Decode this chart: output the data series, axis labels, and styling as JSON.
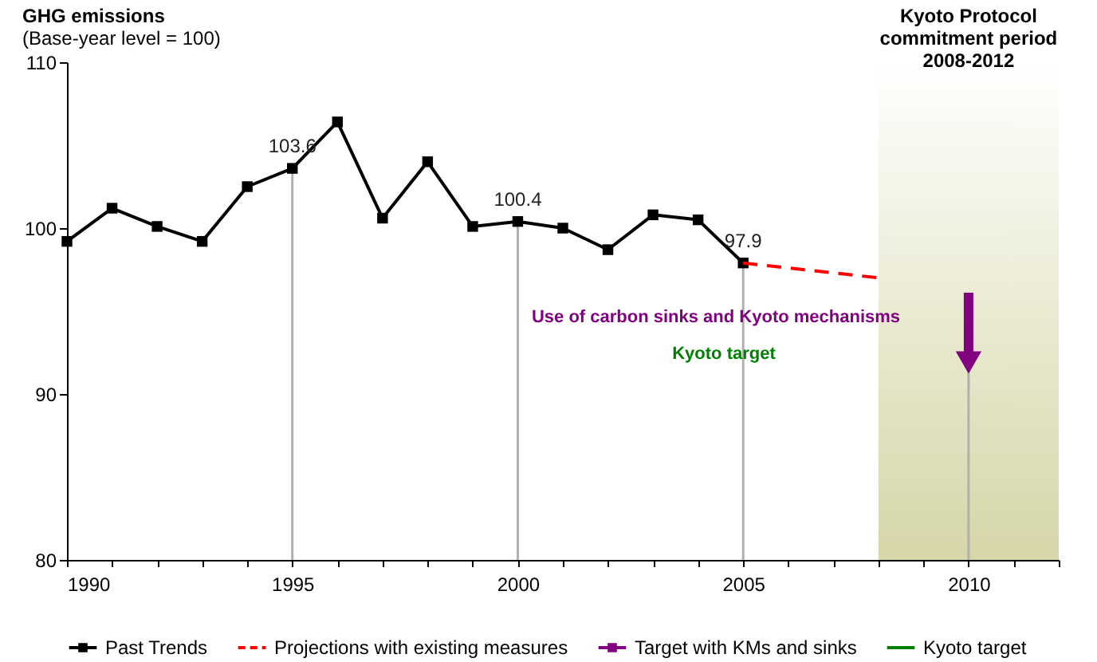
{
  "chart_data": {
    "type": "line",
    "title": "GHG emissions",
    "subtitle": "(Base-year level = 100)",
    "xlim": [
      1990,
      2012
    ],
    "ylim": [
      80,
      110
    ],
    "yticks": [
      80,
      90,
      100,
      110
    ],
    "xticks": [
      1990,
      {
        "value": 1991,
        "label": null
      },
      {
        "value": 1992,
        "label": null
      },
      {
        "value": 1993,
        "label": null
      },
      {
        "value": 1994,
        "label": null
      },
      1995,
      {
        "value": 1996,
        "label": null
      },
      {
        "value": 1997,
        "label": null
      },
      {
        "value": 1998,
        "label": null
      },
      {
        "value": 1999,
        "label": null
      },
      2000,
      {
        "value": 2001,
        "label": null
      },
      {
        "value": 2002,
        "label": null
      },
      {
        "value": 2003,
        "label": null
      },
      {
        "value": 2004,
        "label": null
      },
      2005,
      {
        "value": 2006,
        "label": null
      },
      {
        "value": 2007,
        "label": null
      },
      {
        "value": 2008,
        "label": null
      },
      {
        "value": 2009,
        "label": null
      },
      2010,
      {
        "value": 2011,
        "label": null
      },
      {
        "value": 2012,
        "label": null
      }
    ],
    "legend": "bottom",
    "series": [
      {
        "name": "Past Trends",
        "color": "#000000",
        "marker": "square",
        "line_style": "solid",
        "x": [
          1990,
          1991,
          1992,
          1993,
          1994,
          1995,
          1996,
          1997,
          1998,
          1999,
          2000,
          2001,
          2002,
          2003,
          2004,
          2005
        ],
        "values": [
          99.2,
          101.2,
          100.1,
          99.2,
          102.5,
          103.6,
          106.4,
          100.6,
          104.0,
          100.1,
          100.4,
          100.0,
          98.7,
          100.8,
          100.5,
          97.9
        ],
        "value_labels": [
          null,
          null,
          null,
          null,
          null,
          "103.6",
          null,
          null,
          null,
          null,
          "100.4",
          null,
          null,
          null,
          null,
          "97.9"
        ]
      },
      {
        "name": "Projections with existing measures",
        "color": "#ff0000",
        "marker": "none",
        "line_style": "dashed",
        "x": [
          2005,
          2008
        ],
        "values": [
          97.9,
          97.0
        ]
      },
      {
        "name": "Target with KMs and sinks",
        "color": "#800080",
        "marker": "triangle",
        "line_style": "solid",
        "x": [
          2010,
          2010
        ],
        "values": [
          96.1,
          91.9
        ]
      },
      {
        "name": "Kyoto target",
        "color": "#008000",
        "marker": "none",
        "line_style": "solid"
      }
    ],
    "ref_lines": [
      {
        "axis": "x",
        "value": 1995,
        "color": "#b0b0b0"
      },
      {
        "axis": "x",
        "value": 2000,
        "color": "#b0b0b0"
      },
      {
        "axis": "x",
        "value": 2005,
        "color": "#b0b0b0"
      },
      {
        "axis": "x",
        "value": 2010,
        "color": "#b0b0b0"
      }
    ],
    "bands": [
      {
        "axis": "x",
        "from": 2008,
        "to": 2012,
        "label": "Kyoto Protocol\ncommitment period\n2008-2012",
        "color": "#d6d6a8"
      }
    ],
    "annotations": [
      "Use of carbon sinks and Kyoto mechanisms",
      "Kyoto target"
    ]
  }
}
